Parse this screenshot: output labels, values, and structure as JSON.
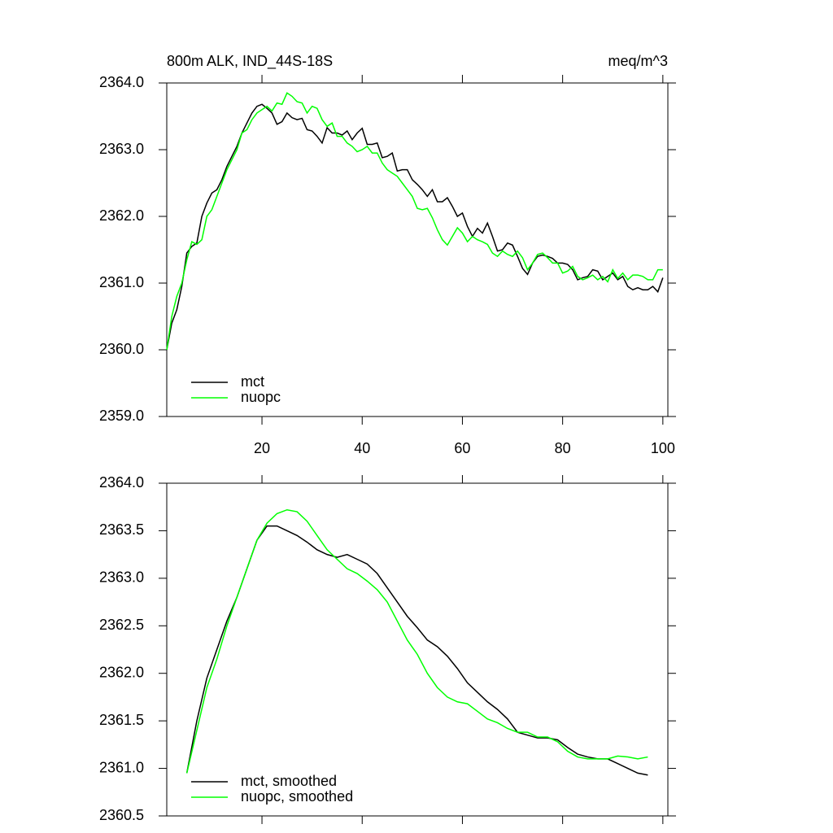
{
  "chart_data": [
    {
      "type": "line",
      "title": "800m ALK, IND_44S-18S",
      "units": "meq/m^3",
      "x": [
        1,
        2,
        3,
        4,
        5,
        6,
        7,
        8,
        9,
        10,
        11,
        12,
        13,
        14,
        15,
        16,
        17,
        18,
        19,
        20,
        21,
        22,
        23,
        24,
        25,
        26,
        27,
        28,
        29,
        30,
        31,
        32,
        33,
        34,
        35,
        36,
        37,
        38,
        39,
        40,
        41,
        42,
        43,
        44,
        45,
        46,
        47,
        48,
        49,
        50,
        51,
        52,
        53,
        54,
        55,
        56,
        57,
        58,
        59,
        60,
        61,
        62,
        63,
        64,
        65,
        66,
        67,
        68,
        69,
        70,
        71,
        72,
        73,
        74,
        75,
        76,
        77,
        78,
        79,
        80,
        81,
        82,
        83,
        84,
        85,
        86,
        87,
        88,
        89,
        90,
        91,
        92,
        93,
        94,
        95,
        96,
        97,
        98,
        99,
        100
      ],
      "series": [
        {
          "name": "mct",
          "color": "#000000",
          "values": [
            2360.0,
            2360.4,
            2360.6,
            2360.95,
            2361.45,
            2361.55,
            2361.6,
            2362.0,
            2362.2,
            2362.35,
            2362.4,
            2362.55,
            2362.75,
            2362.9,
            2363.05,
            2363.25,
            2363.4,
            2363.55,
            2363.65,
            2363.68,
            2363.62,
            2363.55,
            2363.38,
            2363.42,
            2363.55,
            2363.48,
            2363.45,
            2363.47,
            2363.3,
            2363.28,
            2363.2,
            2363.1,
            2363.33,
            2363.25,
            2363.25,
            2363.22,
            2363.28,
            2363.15,
            2363.25,
            2363.32,
            2363.08,
            2363.08,
            2363.1,
            2362.88,
            2362.9,
            2362.95,
            2362.68,
            2362.7,
            2362.7,
            2362.55,
            2362.48,
            2362.4,
            2362.3,
            2362.4,
            2362.22,
            2362.22,
            2362.28,
            2362.15,
            2362.0,
            2362.05,
            2361.85,
            2361.7,
            2361.82,
            2361.75,
            2361.9,
            2361.7,
            2361.48,
            2361.5,
            2361.6,
            2361.57,
            2361.4,
            2361.22,
            2361.13,
            2361.3,
            2361.4,
            2361.42,
            2361.4,
            2361.37,
            2361.3,
            2361.3,
            2361.28,
            2361.2,
            2361.05,
            2361.08,
            2361.1,
            2361.2,
            2361.18,
            2361.05,
            2361.1,
            2361.15,
            2361.05,
            2361.1,
            2360.95,
            2360.9,
            2360.93,
            2360.9,
            2360.9,
            2360.95,
            2360.87,
            2361.08
          ]
        },
        {
          "name": "nuopc",
          "color": "#00ff00",
          "values": [
            2360.0,
            2360.5,
            2360.8,
            2361.0,
            2361.35,
            2361.62,
            2361.58,
            2361.65,
            2362.0,
            2362.1,
            2362.3,
            2362.5,
            2362.7,
            2362.85,
            2363.0,
            2363.25,
            2363.3,
            2363.45,
            2363.55,
            2363.6,
            2363.65,
            2363.58,
            2363.7,
            2363.68,
            2363.85,
            2363.8,
            2363.72,
            2363.7,
            2363.55,
            2363.65,
            2363.62,
            2363.45,
            2363.35,
            2363.4,
            2363.2,
            2363.2,
            2363.1,
            2363.05,
            2362.97,
            2363.0,
            2363.05,
            2362.95,
            2362.95,
            2362.8,
            2362.7,
            2362.65,
            2362.6,
            2362.5,
            2362.4,
            2362.3,
            2362.12,
            2362.1,
            2362.12,
            2361.98,
            2361.8,
            2361.65,
            2361.57,
            2361.7,
            2361.83,
            2361.75,
            2361.62,
            2361.7,
            2361.65,
            2361.62,
            2361.58,
            2361.45,
            2361.4,
            2361.48,
            2361.43,
            2361.4,
            2361.48,
            2361.38,
            2361.2,
            2361.3,
            2361.43,
            2361.45,
            2361.38,
            2361.3,
            2361.3,
            2361.15,
            2361.18,
            2361.25,
            2361.1,
            2361.05,
            2361.08,
            2361.12,
            2361.05,
            2361.1,
            2361.02,
            2361.2,
            2361.07,
            2361.15,
            2361.05,
            2361.12,
            2361.12,
            2361.1,
            2361.05,
            2361.05,
            2361.2,
            2361.2
          ]
        }
      ],
      "xlim": [
        1,
        101
      ],
      "xticks": [
        20,
        40,
        60,
        80,
        100
      ],
      "show_xtick_labels": true,
      "ylim": [
        2359,
        2364
      ],
      "yticks": [
        {
          "value": 2359,
          "label": "2359.0"
        },
        {
          "value": 2360,
          "label": "2360.0"
        },
        {
          "value": 2361,
          "label": "2361.0"
        },
        {
          "value": 2362,
          "label": "2362.0"
        },
        {
          "value": 2363,
          "label": "2363.0"
        },
        {
          "value": 2364,
          "label": "2364.0"
        }
      ],
      "legend": "lower left"
    },
    {
      "type": "line",
      "x": [
        5,
        7,
        9,
        11,
        13,
        15,
        17,
        19,
        21,
        23,
        25,
        27,
        29,
        31,
        33,
        35,
        37,
        39,
        41,
        43,
        45,
        47,
        49,
        51,
        53,
        55,
        57,
        59,
        61,
        63,
        65,
        67,
        69,
        71,
        73,
        75,
        77,
        79,
        81,
        83,
        85,
        87,
        89,
        91,
        93,
        95,
        97
      ],
      "series": [
        {
          "name": "mct, smoothed",
          "color": "#000000",
          "values": [
            2360.95,
            2361.5,
            2361.95,
            2362.25,
            2362.55,
            2362.8,
            2363.1,
            2363.4,
            2363.55,
            2363.55,
            2363.5,
            2363.45,
            2363.38,
            2363.3,
            2363.25,
            2363.22,
            2363.25,
            2363.2,
            2363.15,
            2363.05,
            2362.9,
            2362.75,
            2362.6,
            2362.48,
            2362.35,
            2362.28,
            2362.18,
            2362.05,
            2361.9,
            2361.8,
            2361.7,
            2361.62,
            2361.52,
            2361.38,
            2361.35,
            2361.32,
            2361.32,
            2361.3,
            2361.22,
            2361.15,
            2361.12,
            2361.1,
            2361.1,
            2361.05,
            2361.0,
            2360.95,
            2360.93
          ]
        },
        {
          "name": "nuopc, smoothed",
          "color": "#00ff00",
          "values": [
            2360.95,
            2361.4,
            2361.85,
            2362.15,
            2362.5,
            2362.8,
            2363.1,
            2363.4,
            2363.58,
            2363.68,
            2363.72,
            2363.7,
            2363.6,
            2363.45,
            2363.3,
            2363.2,
            2363.1,
            2363.05,
            2362.97,
            2362.88,
            2362.75,
            2362.55,
            2362.35,
            2362.2,
            2362.0,
            2361.85,
            2361.75,
            2361.7,
            2361.68,
            2361.6,
            2361.52,
            2361.48,
            2361.42,
            2361.38,
            2361.38,
            2361.33,
            2361.33,
            2361.28,
            2361.18,
            2361.12,
            2361.1,
            2361.1,
            2361.1,
            2361.13,
            2361.12,
            2361.1,
            2361.12
          ]
        }
      ],
      "xlim": [
        1,
        101
      ],
      "xticks": [
        20,
        40,
        60,
        80,
        100
      ],
      "show_xtick_labels": false,
      "ylim": [
        2360.5,
        2364
      ],
      "yticks": [
        2360.5,
        {
          "value": 2361,
          "label": "2361.0"
        },
        2361.5,
        {
          "value": 2362,
          "label": "2362.0"
        },
        2362.5,
        {
          "value": 2363,
          "label": "2363.0"
        },
        2363.5,
        {
          "value": 2364,
          "label": "2364.0"
        }
      ],
      "legend": "lower left"
    }
  ]
}
